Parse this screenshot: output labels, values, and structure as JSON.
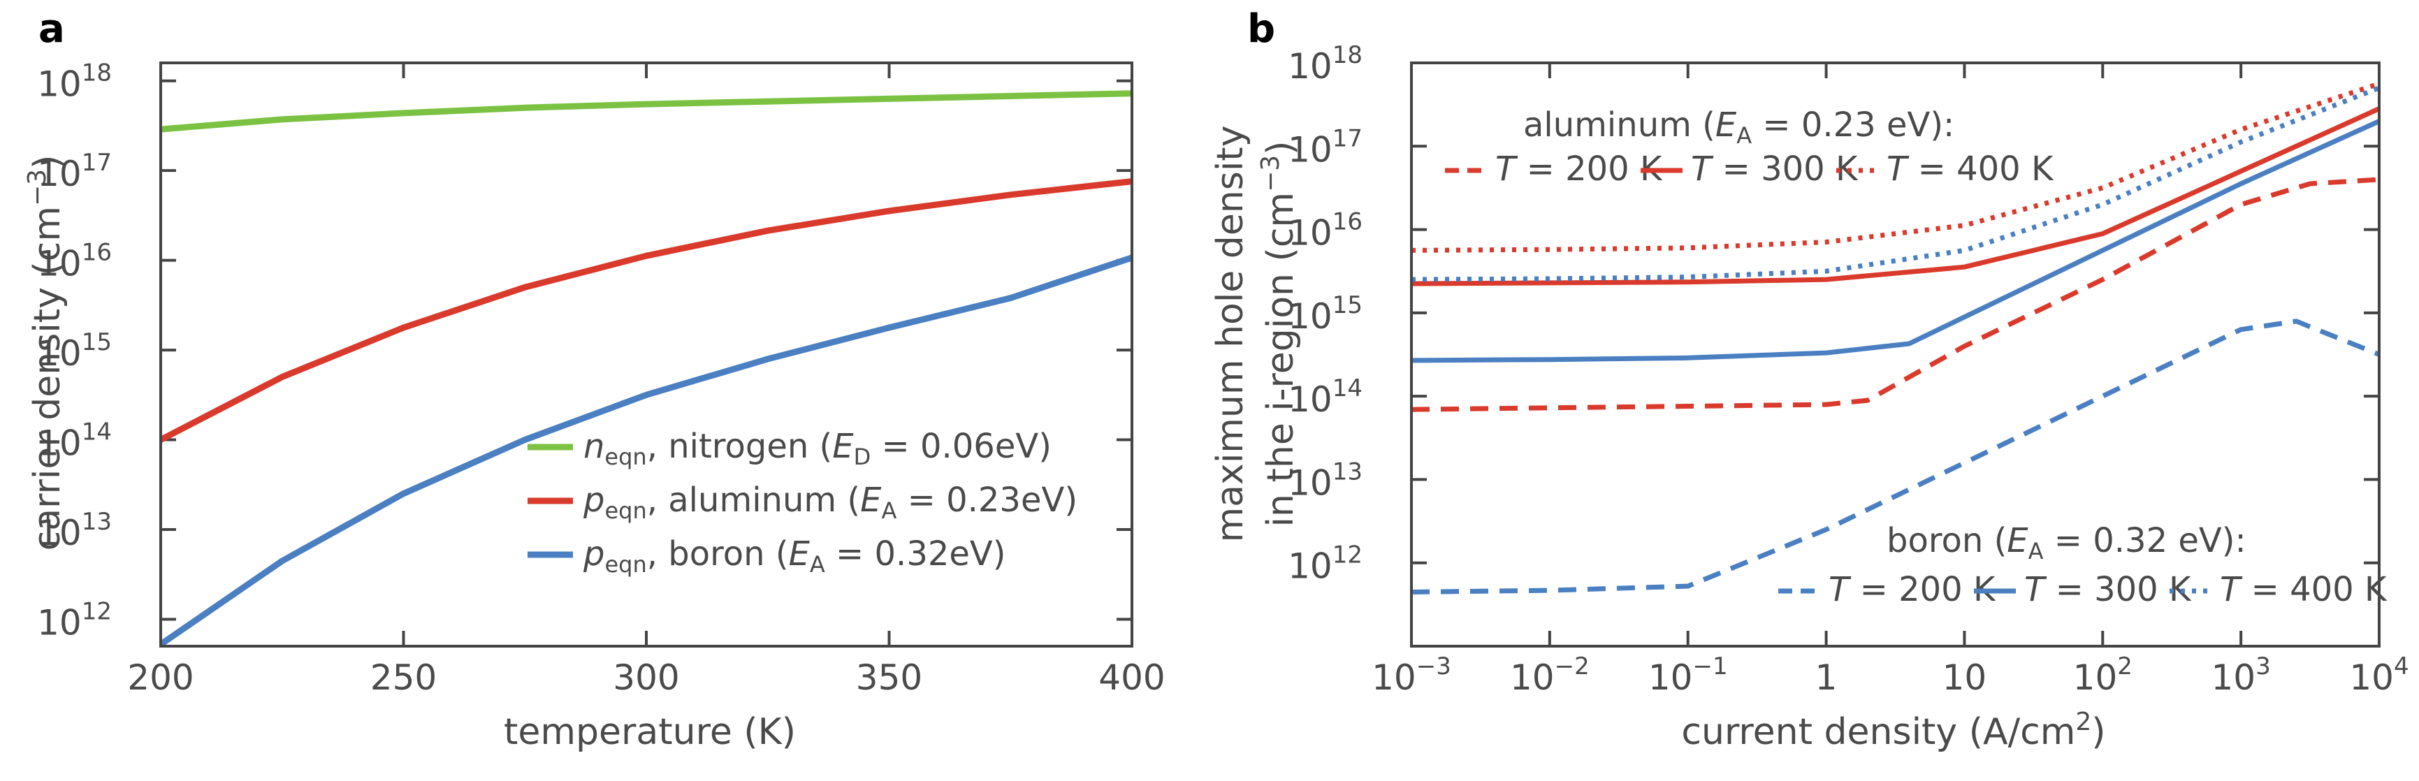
{
  "colors": {
    "green": "#7cc242",
    "red": "#d93a2b",
    "blue": "#4a7fc2",
    "axis": "#444444",
    "text": "#4a4a4a"
  },
  "chart_data": [
    {
      "panel": "a",
      "type": "line",
      "xlabel": "temperature (K)",
      "ylabel": "carrier density (cm",
      "ylabel_sup": "−3",
      "ylabel_close": ")",
      "xlim": [
        200,
        400
      ],
      "ylim_log10": [
        11.7,
        18.2
      ],
      "xticks": [
        {
          "value": 200,
          "label": "200"
        },
        {
          "value": 250,
          "label": "250"
        },
        {
          "value": 300,
          "label": "300"
        },
        {
          "value": 350,
          "label": "350"
        },
        {
          "value": 400,
          "label": "400"
        }
      ],
      "yticks": [
        {
          "exp": 12,
          "base": "10",
          "sup": "12"
        },
        {
          "exp": 13,
          "base": "10",
          "sup": "13"
        },
        {
          "exp": 14,
          "base": "10",
          "sup": "14"
        },
        {
          "exp": 15,
          "base": "10",
          "sup": "15"
        },
        {
          "exp": 16,
          "base": "10",
          "sup": "16"
        },
        {
          "exp": 17,
          "base": "10",
          "sup": "17"
        },
        {
          "exp": 18,
          "base": "10",
          "sup": "18"
        }
      ],
      "series": [
        {
          "name": "n_eqn nitrogen",
          "color": "green",
          "dash": "solid",
          "x": [
            200,
            225,
            250,
            275,
            300,
            325,
            350,
            375,
            400
          ],
          "log10y": [
            17.46,
            17.57,
            17.64,
            17.7,
            17.74,
            17.77,
            17.8,
            17.83,
            17.86
          ]
        },
        {
          "name": "p_eqn aluminum",
          "color": "red",
          "dash": "solid",
          "x": [
            200,
            225,
            250,
            275,
            300,
            325,
            350,
            375,
            400
          ],
          "log10y": [
            14.0,
            14.7,
            15.25,
            15.7,
            16.05,
            16.33,
            16.55,
            16.73,
            16.88
          ]
        },
        {
          "name": "p_eqn boron",
          "color": "blue",
          "dash": "solid",
          "x": [
            200,
            225,
            250,
            275,
            300,
            325,
            350,
            375,
            400
          ],
          "log10y": [
            11.72,
            12.65,
            13.4,
            14.0,
            14.5,
            14.9,
            15.25,
            15.58,
            16.03
          ]
        }
      ],
      "legend": [
        {
          "color": "green",
          "sym": "n",
          "sub": "eqn",
          "mid": ", nitrogen (",
          "e": "E",
          "esub": "D",
          "tail": " = 0.06eV)"
        },
        {
          "color": "red",
          "sym": "p",
          "sub": "eqn",
          "mid": ", aluminum (",
          "e": "E",
          "esub": "A",
          "tail": " = 0.23eV)"
        },
        {
          "color": "blue",
          "sym": "p",
          "sub": "eqn",
          "mid": ", boron (",
          "e": "E",
          "esub": "A",
          "tail": " = 0.32eV)"
        }
      ]
    },
    {
      "panel": "b",
      "type": "line",
      "xlabel": "current density (A/cm",
      "xlabel_sup": "2",
      "xlabel_close": ")",
      "ylabel_line1": "maximum hole density",
      "ylabel_line2": "in the i-region (cm",
      "ylabel_sup": "−3",
      "ylabel_close": ")",
      "xlim_log10": [
        -3,
        4
      ],
      "ylim_log10": [
        11.0,
        18.0
      ],
      "xticks": [
        {
          "exp": -3,
          "base": "10",
          "sup": "−3"
        },
        {
          "exp": -2,
          "base": "10",
          "sup": "−2"
        },
        {
          "exp": -1,
          "base": "10",
          "sup": "−1"
        },
        {
          "exp": 0,
          "base": "1",
          "sup": ""
        },
        {
          "exp": 1,
          "base": "10",
          "sup": ""
        },
        {
          "exp": 2,
          "base": "10",
          "sup": "2"
        },
        {
          "exp": 3,
          "base": "10",
          "sup": "3"
        },
        {
          "exp": 4,
          "base": "10",
          "sup": "4"
        }
      ],
      "yticks": [
        {
          "exp": 12,
          "base": "10",
          "sup": "12"
        },
        {
          "exp": 13,
          "base": "10",
          "sup": "13"
        },
        {
          "exp": 14,
          "base": "10",
          "sup": "14"
        },
        {
          "exp": 15,
          "base": "10",
          "sup": "15"
        },
        {
          "exp": 16,
          "base": "10",
          "sup": "16"
        },
        {
          "exp": 17,
          "base": "10",
          "sup": "17"
        },
        {
          "exp": 18,
          "base": "10",
          "sup": "18"
        }
      ],
      "series": [
        {
          "name": "aluminum T = 200 K",
          "color": "red",
          "dash": "dashed",
          "log10x": [
            -3.0,
            -2.0,
            -1.0,
            0.0,
            0.3,
            1.0,
            2.0,
            3.0,
            3.5,
            4.0
          ],
          "log10y": [
            13.84,
            13.86,
            13.88,
            13.9,
            13.95,
            14.6,
            15.4,
            16.3,
            16.55,
            16.6
          ]
        },
        {
          "name": "aluminum T = 300 K",
          "color": "red",
          "dash": "solid",
          "log10x": [
            -3.0,
            -2.0,
            -1.0,
            0.0,
            1.0,
            2.0,
            3.0,
            4.0
          ],
          "log10y": [
            15.35,
            15.36,
            15.37,
            15.4,
            15.55,
            15.95,
            16.7,
            17.45
          ]
        },
        {
          "name": "aluminum T = 400 K",
          "color": "red",
          "dash": "dotted",
          "log10x": [
            -3.0,
            -2.0,
            -1.0,
            0.0,
            1.0,
            2.0,
            3.0,
            4.0
          ],
          "log10y": [
            15.75,
            15.76,
            15.78,
            15.85,
            16.05,
            16.5,
            17.2,
            17.75
          ]
        },
        {
          "name": "boron T = 200 K",
          "color": "blue",
          "dash": "dashed",
          "log10x": [
            -3.0,
            -2.0,
            -1.0,
            0.0,
            1.0,
            2.0,
            3.0,
            3.4,
            4.0
          ],
          "log10y": [
            11.65,
            11.67,
            11.72,
            12.4,
            13.2,
            14.0,
            14.8,
            14.9,
            14.5
          ]
        },
        {
          "name": "boron T = 300 K",
          "color": "blue",
          "dash": "solid",
          "log10x": [
            -3.0,
            -2.0,
            -1.0,
            0.0,
            0.6,
            1.0,
            2.0,
            3.0,
            4.0
          ],
          "log10y": [
            14.43,
            14.44,
            14.46,
            14.52,
            14.63,
            14.95,
            15.75,
            16.55,
            17.3
          ]
        },
        {
          "name": "boron T = 400 K",
          "color": "blue",
          "dash": "dotted",
          "log10x": [
            -3.0,
            -2.0,
            -1.0,
            0.0,
            1.0,
            2.0,
            3.0,
            4.0
          ],
          "log10y": [
            15.4,
            15.41,
            15.43,
            15.5,
            15.75,
            16.3,
            17.05,
            17.7
          ]
        }
      ],
      "legend_aluminum": {
        "title_pre": "aluminum (",
        "e": "E",
        "esub": "A",
        "title_tail": " = 0.23 eV):",
        "entries": [
          {
            "color": "red",
            "dash": "dashed",
            "t": "T",
            "label": " = 200 K"
          },
          {
            "color": "red",
            "dash": "solid",
            "t": "T",
            "label": " = 300 K"
          },
          {
            "color": "red",
            "dash": "dotted",
            "t": "T",
            "label": " = 400 K"
          }
        ]
      },
      "legend_boron": {
        "title_pre": "boron (",
        "e": "E",
        "esub": "A",
        "title_tail": " = 0.32 eV):",
        "entries": [
          {
            "color": "blue",
            "dash": "dashed",
            "t": "T",
            "label": " = 200 K"
          },
          {
            "color": "blue",
            "dash": "solid",
            "t": "T",
            "label": " = 300 K"
          },
          {
            "color": "blue",
            "dash": "dotted",
            "t": "T",
            "label": " = 400 K"
          }
        ]
      }
    }
  ],
  "panel_labels": [
    "a",
    "b"
  ]
}
